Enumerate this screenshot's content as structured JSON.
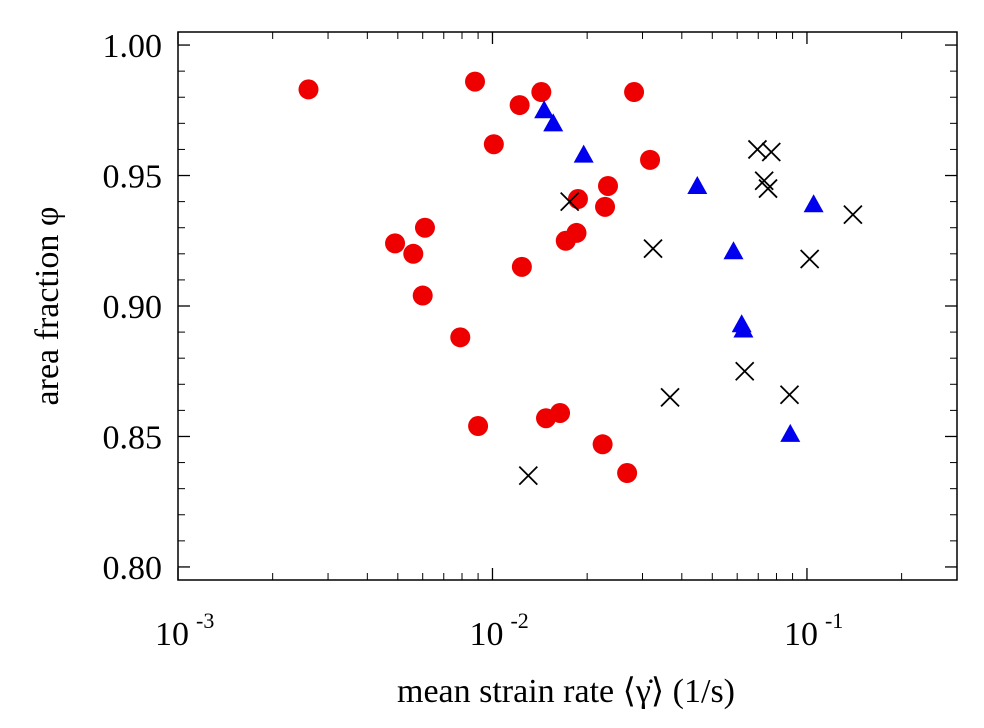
{
  "chart_data": {
    "type": "scatter",
    "title": "",
    "xlabel": "mean strain rate ⟨γ̇⟩ (1/s)",
    "ylabel": "area fraction φ",
    "x_scale": "log",
    "xlim": [
      0.001,
      0.3
    ],
    "ylim": [
      0.795,
      1.005
    ],
    "x_major_ticks": [
      {
        "value": 0.001,
        "base": "10",
        "exp": "-3"
      },
      {
        "value": 0.01,
        "base": "10",
        "exp": "-2"
      },
      {
        "value": 0.1,
        "base": "10",
        "exp": "-1"
      }
    ],
    "y_ticks": [
      {
        "value": 0.8,
        "label": "0.80"
      },
      {
        "value": 0.85,
        "label": "0.85"
      },
      {
        "value": 0.9,
        "label": "0.90"
      },
      {
        "value": 0.95,
        "label": "0.95"
      },
      {
        "value": 1.0,
        "label": "1.00"
      }
    ],
    "grid": false,
    "series": [
      {
        "marker": "circle",
        "color": "#ee0000",
        "points": [
          [
            0.0026,
            0.983
          ],
          [
            0.0088,
            0.986
          ],
          [
            0.0143,
            0.982
          ],
          [
            0.0122,
            0.977
          ],
          [
            0.0282,
            0.982
          ],
          [
            0.0101,
            0.962
          ],
          [
            0.0317,
            0.956
          ],
          [
            0.0187,
            0.941
          ],
          [
            0.0233,
            0.946
          ],
          [
            0.0228,
            0.938
          ],
          [
            0.0049,
            0.924
          ],
          [
            0.0056,
            0.92
          ],
          [
            0.0061,
            0.93
          ],
          [
            0.0171,
            0.925
          ],
          [
            0.0185,
            0.928
          ],
          [
            0.0124,
            0.915
          ],
          [
            0.006,
            0.904
          ],
          [
            0.0079,
            0.888
          ],
          [
            0.009,
            0.854
          ],
          [
            0.0148,
            0.857
          ],
          [
            0.0164,
            0.859
          ],
          [
            0.0224,
            0.847
          ],
          [
            0.0268,
            0.836
          ]
        ]
      },
      {
        "marker": "triangle",
        "color": "#0000ee",
        "points": [
          [
            0.0146,
            0.975
          ],
          [
            0.0156,
            0.97
          ],
          [
            0.0195,
            0.958
          ],
          [
            0.0448,
            0.946
          ],
          [
            0.0584,
            0.921
          ],
          [
            0.062,
            0.893
          ],
          [
            0.0628,
            0.891
          ],
          [
            0.105,
            0.939
          ],
          [
            0.0885,
            0.851
          ]
        ]
      },
      {
        "marker": "cross",
        "color": "#000000",
        "points": [
          [
            0.0696,
            0.96
          ],
          [
            0.077,
            0.959
          ],
          [
            0.0731,
            0.948
          ],
          [
            0.0752,
            0.945
          ],
          [
            0.0176,
            0.94
          ],
          [
            0.14,
            0.935
          ],
          [
            0.0324,
            0.922
          ],
          [
            0.102,
            0.918
          ],
          [
            0.0634,
            0.875
          ],
          [
            0.0367,
            0.865
          ],
          [
            0.088,
            0.866
          ],
          [
            0.013,
            0.835
          ]
        ]
      }
    ]
  }
}
